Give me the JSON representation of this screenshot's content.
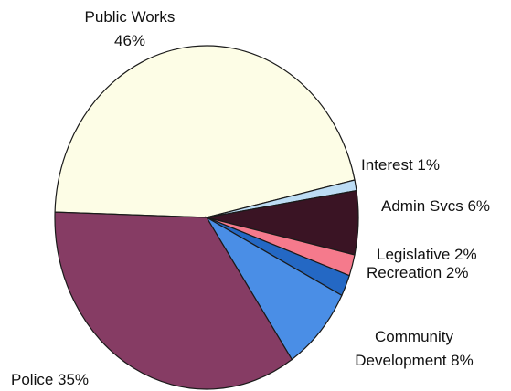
{
  "chart_data": {
    "type": "pie",
    "title": "",
    "slices": [
      {
        "label": "Public Works",
        "value": 46,
        "pct_text": "46%",
        "color": "#fdfde6"
      },
      {
        "label": "Interest",
        "value": 1,
        "pct_text": "1%",
        "color": "#bcdcf4"
      },
      {
        "label": "Admin Svcs",
        "value": 6,
        "pct_text": "6%",
        "color": "#3a1424"
      },
      {
        "label": "Legislative",
        "value": 2,
        "pct_text": "2%",
        "color": "#f57a8c"
      },
      {
        "label": "Recreation",
        "value": 2,
        "pct_text": "2%",
        "color": "#2468c4"
      },
      {
        "label": "Community Development",
        "value": 8,
        "pct_text": "8%",
        "color": "#4a8ee6"
      },
      {
        "label": "Police",
        "value": 35,
        "pct_text": "35%",
        "color": "#863c64"
      }
    ],
    "labels": {
      "public_works_name": "Public Works",
      "public_works_pct": "46%",
      "interest": "Interest 1%",
      "admin": "Admin Svcs 6%",
      "legislative": "Legislative 2%",
      "recreation": "Recreation 2%",
      "community_line1": "Community",
      "community_line2": "Development 8%",
      "police": "Police 35%"
    },
    "legend": "none"
  }
}
